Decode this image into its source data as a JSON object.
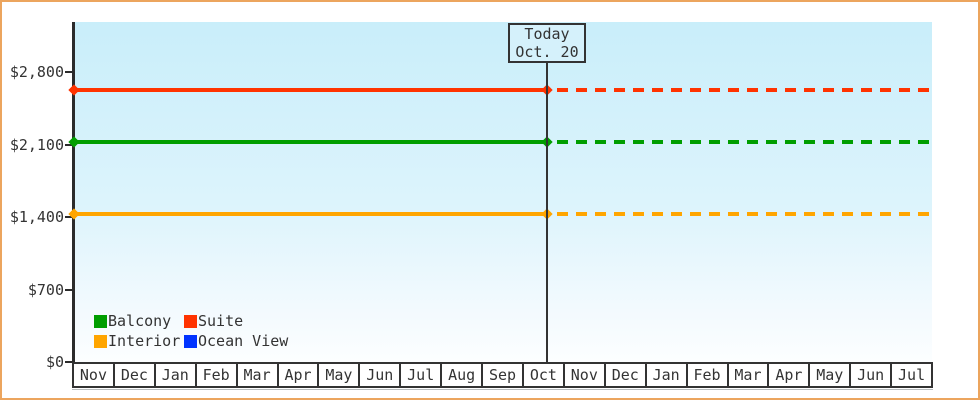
{
  "today_marker": {
    "label": "Today",
    "date": "Oct. 20"
  },
  "chart_data": {
    "type": "line",
    "title": "",
    "x_categories": [
      "Nov",
      "Dec",
      "Jan",
      "Feb",
      "Mar",
      "Apr",
      "May",
      "Jun",
      "Jul",
      "Aug",
      "Sep",
      "Oct",
      "Nov",
      "Dec",
      "Jan",
      "Feb",
      "Mar",
      "Apr",
      "May",
      "Jun",
      "Jul"
    ],
    "y_ticks": [
      {
        "value": 2800,
        "label": "$2,800"
      },
      {
        "value": 2100,
        "label": "$2,100"
      },
      {
        "value": 1400,
        "label": "$1,400"
      },
      {
        "value": 700,
        "label": "$700"
      },
      {
        "value": 0,
        "label": "$0"
      }
    ],
    "ylim": [
      0,
      3283
    ],
    "series": [
      {
        "name": "Balcony",
        "color": "#009E00",
        "value": 2120,
        "plotted": true
      },
      {
        "name": "Suite",
        "color": "#FF3300",
        "value": 2625,
        "plotted": true
      },
      {
        "name": "Interior",
        "color": "#FFA500",
        "value": 1430,
        "plotted": true
      },
      {
        "name": "Ocean View",
        "color": "#0033FF",
        "value": null,
        "plotted": false
      }
    ],
    "today": {
      "label": "Today",
      "date": "Oct. 20",
      "month": "Oct"
    },
    "line_style": "solid before today, dotted projection after today; flat horizontal price lines",
    "legend_position": "bottom-left inside plot",
    "grid": false
  },
  "colors": {
    "frame_border": "#ECA55E",
    "axis": "#2B2B2B",
    "text": "#333333",
    "plot_bg_top": "#C9EEFA",
    "plot_bg_bottom": "#FCFEFF",
    "today_box_fill": "#D5F1FB"
  }
}
